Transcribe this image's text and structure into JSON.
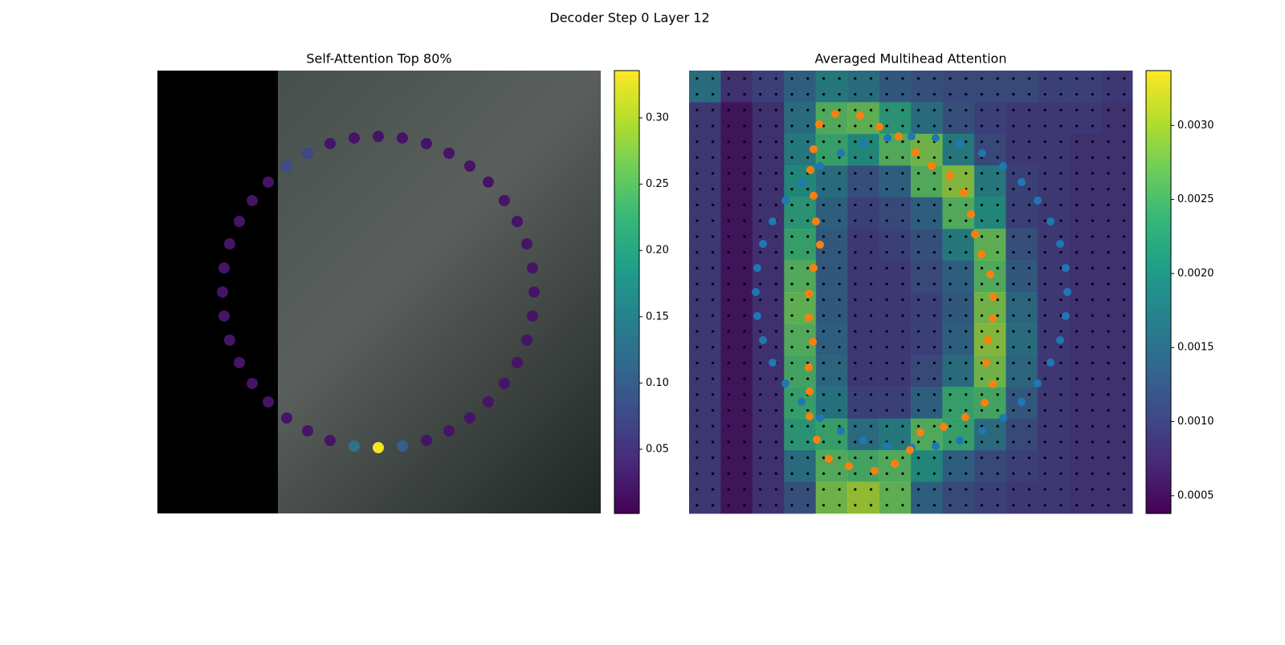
{
  "figure_title": "Decoder Step 0 Layer 12",
  "chart_data": [
    {
      "type": "scatter",
      "title": "Self-Attention Top 80%",
      "colormap": "viridis",
      "y_inverted": true,
      "xlim": [
        0,
        552
      ],
      "ylim": [
        0,
        552
      ],
      "x": [
        275,
        305,
        335,
        363,
        389,
        412,
        432,
        448,
        460,
        467,
        469,
        467,
        460,
        448,
        432,
        412,
        389,
        363,
        335,
        305,
        275,
        245,
        215,
        187,
        161,
        138,
        118,
        102,
        90,
        83,
        81,
        83,
        90,
        102,
        118,
        138,
        161,
        187,
        215,
        245
      ],
      "y": [
        470,
        468,
        461,
        449,
        433,
        413,
        390,
        364,
        336,
        306,
        276,
        246,
        216,
        188,
        162,
        139,
        119,
        103,
        91,
        84,
        82,
        84,
        91,
        103,
        119,
        139,
        162,
        188,
        216,
        246,
        276,
        306,
        336,
        364,
        390,
        413,
        433,
        449,
        461,
        468
      ],
      "values": [
        0.33,
        0.1,
        0.02,
        0.02,
        0.02,
        0.02,
        0.02,
        0.02,
        0.02,
        0.02,
        0.02,
        0.02,
        0.02,
        0.02,
        0.02,
        0.02,
        0.02,
        0.02,
        0.02,
        0.02,
        0.02,
        0.02,
        0.02,
        0.07,
        0.08,
        0.02,
        0.02,
        0.02,
        0.02,
        0.02,
        0.02,
        0.02,
        0.02,
        0.02,
        0.02,
        0.02,
        0.02,
        0.02,
        0.02,
        0.13
      ],
      "clim": [
        0.0016,
        0.3357
      ],
      "cticks": [
        0.05,
        {
          "value": 0.1,
          "label": "0.10"
        },
        0.15,
        {
          "value": 0.2,
          "label": "0.20"
        },
        0.25,
        {
          "value": 0.3,
          "label": "0.30"
        }
      ]
    },
    {
      "type": "heatmap",
      "title": "Averaged Multihead Attention",
      "colormap": "viridis",
      "y_inverted": true,
      "xlim": [
        0,
        552
      ],
      "ylim": [
        0,
        552
      ],
      "matrix": [
        [
          0.0016,
          0.0008,
          0.001,
          0.0014,
          0.0018,
          0.0016,
          0.0013,
          0.0012,
          0.0011,
          0.0011,
          0.0011,
          0.001,
          0.001,
          0.0009
        ],
        [
          0.0009,
          0.0005,
          0.0008,
          0.0016,
          0.0026,
          0.0027,
          0.0022,
          0.0016,
          0.0012,
          0.001,
          0.0009,
          0.0009,
          0.0009,
          0.0008
        ],
        [
          0.0009,
          0.0005,
          0.0008,
          0.0018,
          0.0024,
          0.002,
          0.0026,
          0.0028,
          0.0018,
          0.0011,
          0.0009,
          0.0009,
          0.0008,
          0.0008
        ],
        [
          0.0009,
          0.0005,
          0.0008,
          0.002,
          0.0016,
          0.0012,
          0.0014,
          0.0026,
          0.0029,
          0.0018,
          0.001,
          0.0009,
          0.0008,
          0.0008
        ],
        [
          0.0009,
          0.0005,
          0.0008,
          0.0022,
          0.0014,
          0.001,
          0.0011,
          0.0014,
          0.0026,
          0.002,
          0.001,
          0.0009,
          0.0008,
          0.0008
        ],
        [
          0.0009,
          0.0005,
          0.0008,
          0.0024,
          0.0013,
          0.0009,
          0.001,
          0.0012,
          0.0018,
          0.0027,
          0.0012,
          0.0009,
          0.0008,
          0.0008
        ],
        [
          0.0009,
          0.0005,
          0.0008,
          0.0026,
          0.0013,
          0.0009,
          0.0009,
          0.0011,
          0.0014,
          0.0026,
          0.0013,
          0.0009,
          0.0008,
          0.0008
        ],
        [
          0.0009,
          0.0005,
          0.0008,
          0.0027,
          0.0013,
          0.0009,
          0.0009,
          0.001,
          0.0013,
          0.0028,
          0.0015,
          0.0009,
          0.0008,
          0.0008
        ],
        [
          0.0009,
          0.0005,
          0.0008,
          0.0026,
          0.0014,
          0.0009,
          0.0009,
          0.001,
          0.0014,
          0.0029,
          0.0016,
          0.0009,
          0.0008,
          0.0008
        ],
        [
          0.0009,
          0.0005,
          0.0008,
          0.0025,
          0.0015,
          0.0009,
          0.0009,
          0.0011,
          0.0016,
          0.0028,
          0.0015,
          0.0009,
          0.0008,
          0.0008
        ],
        [
          0.0009,
          0.0005,
          0.0008,
          0.0024,
          0.0017,
          0.001,
          0.001,
          0.0014,
          0.0024,
          0.0025,
          0.0013,
          0.0009,
          0.0008,
          0.0008
        ],
        [
          0.0009,
          0.0005,
          0.0008,
          0.0022,
          0.0024,
          0.0016,
          0.0018,
          0.0026,
          0.0024,
          0.0016,
          0.0011,
          0.0009,
          0.0008,
          0.0008
        ],
        [
          0.0009,
          0.0005,
          0.0008,
          0.0016,
          0.0026,
          0.0025,
          0.0026,
          0.002,
          0.0014,
          0.0011,
          0.001,
          0.0009,
          0.0008,
          0.0008
        ],
        [
          0.0009,
          0.0005,
          0.0008,
          0.0012,
          0.0028,
          0.003,
          0.0027,
          0.0014,
          0.0011,
          0.001,
          0.0009,
          0.0009,
          0.0008,
          0.0008
        ]
      ],
      "series": [
        {
          "color": "#1f77b4",
          "x": [
            277,
            307,
            337,
            365,
            391,
            414,
            434,
            450,
            462,
            469,
            471,
            469,
            462,
            450,
            434,
            414,
            391,
            365,
            337,
            307,
            277,
            247,
            217,
            189,
            163,
            140,
            120,
            104,
            92,
            85,
            83,
            85,
            92,
            104,
            120,
            140,
            163,
            189,
            217,
            247
          ],
          "y": [
            470,
            468,
            461,
            449,
            433,
            413,
            390,
            364,
            336,
            306,
            276,
            246,
            216,
            188,
            162,
            139,
            119,
            103,
            91,
            84,
            82,
            84,
            91,
            103,
            119,
            139,
            162,
            188,
            216,
            246,
            276,
            306,
            336,
            364,
            390,
            413,
            433,
            449,
            461,
            468
          ]
        },
        {
          "color": "#ff7f0e",
          "x": [
            182,
            213,
            237,
            261,
            282,
            302,
            325,
            342,
            351,
            356,
            364,
            375,
            379,
            378,
            372,
            370,
            378,
            368,
            344,
            317,
            288,
            275,
            256,
            231,
            199,
            174,
            159,
            150,
            150,
            149,
            154,
            149,
            149,
            155,
            163,
            158,
            155,
            151,
            155,
            162
          ],
          "y": [
            54,
            56,
            70,
            82,
            102,
            119,
            131,
            152,
            179,
            204,
            229,
            254,
            282,
            309,
            336,
            364,
            391,
            414,
            432,
            444,
            451,
            473,
            490,
            499,
            493,
            484,
            460,
            431,
            400,
            370,
            338,
            308,
            278,
            246,
            217,
            188,
            156,
            124,
            98,
            67
          ]
        }
      ],
      "clim": [
        0.00038,
        0.00337
      ],
      "cticks": [
        0.0005,
        {
          "value": 0.001,
          "label": "0.0010"
        },
        0.0015,
        {
          "value": 0.002,
          "label": "0.0020"
        },
        0.0025,
        {
          "value": 0.003,
          "label": "0.0030"
        }
      ]
    }
  ]
}
